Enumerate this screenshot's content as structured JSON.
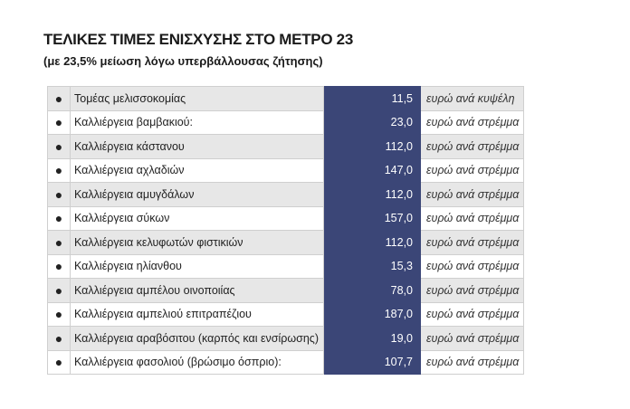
{
  "header": {
    "title": "ΤΕΛΙΚΕΣ ΤΙΜΕΣ ΕΝΙΣΧΥΣΗΣ ΣΤΟ ΜΕΤΡΟ 23",
    "subtitle": "(με 23,5% μείωση λόγω υπερβάλλουσας ζήτησης)"
  },
  "table": {
    "rows": [
      [
        "Τομέας μελισσοκομίας",
        "11,5",
        "ευρώ ανά κυψέλη"
      ],
      [
        "Καλλιέργεια βαμβακιού:",
        "23,0",
        "ευρώ ανά στρέμμα"
      ],
      [
        "Καλλιέργεια κάστανου",
        "112,0",
        "ευρώ ανά στρέμμα"
      ],
      [
        "Καλλιέργεια αχλαδιών",
        "147,0",
        "ευρώ ανά στρέμμα"
      ],
      [
        "Καλλιέργεια αμυγδάλων",
        "112,0",
        "ευρώ ανά στρέμμα"
      ],
      [
        "Καλλιέργεια σύκων",
        "157,0",
        "ευρώ ανά στρέμμα"
      ],
      [
        "Καλλιέργεια κελυφωτών φιστικιών",
        "112,0",
        "ευρώ ανά στρέμμα"
      ],
      [
        "Καλλιέργεια ηλίανθου",
        "15,3",
        "ευρώ ανά στρέμμα"
      ],
      [
        "Καλλιέργεια αμπέλου οινοποιίας",
        "78,0",
        "ευρώ ανά στρέμμα"
      ],
      [
        "Καλλιέργεια αμπελιού επιτραπέζιου",
        "187,0",
        "ευρώ ανά στρέμμα"
      ],
      [
        "Καλλιέργεια αραβόσιτου (καρπός και ενσίρωσης)",
        "19,0",
        "ευρώ ανά στρέμμα"
      ],
      [
        "Καλλιέργεια φασολιού (βρώσιμο όσπριο):",
        "107,7",
        "ευρώ ανά στρέμμα"
      ]
    ]
  }
}
